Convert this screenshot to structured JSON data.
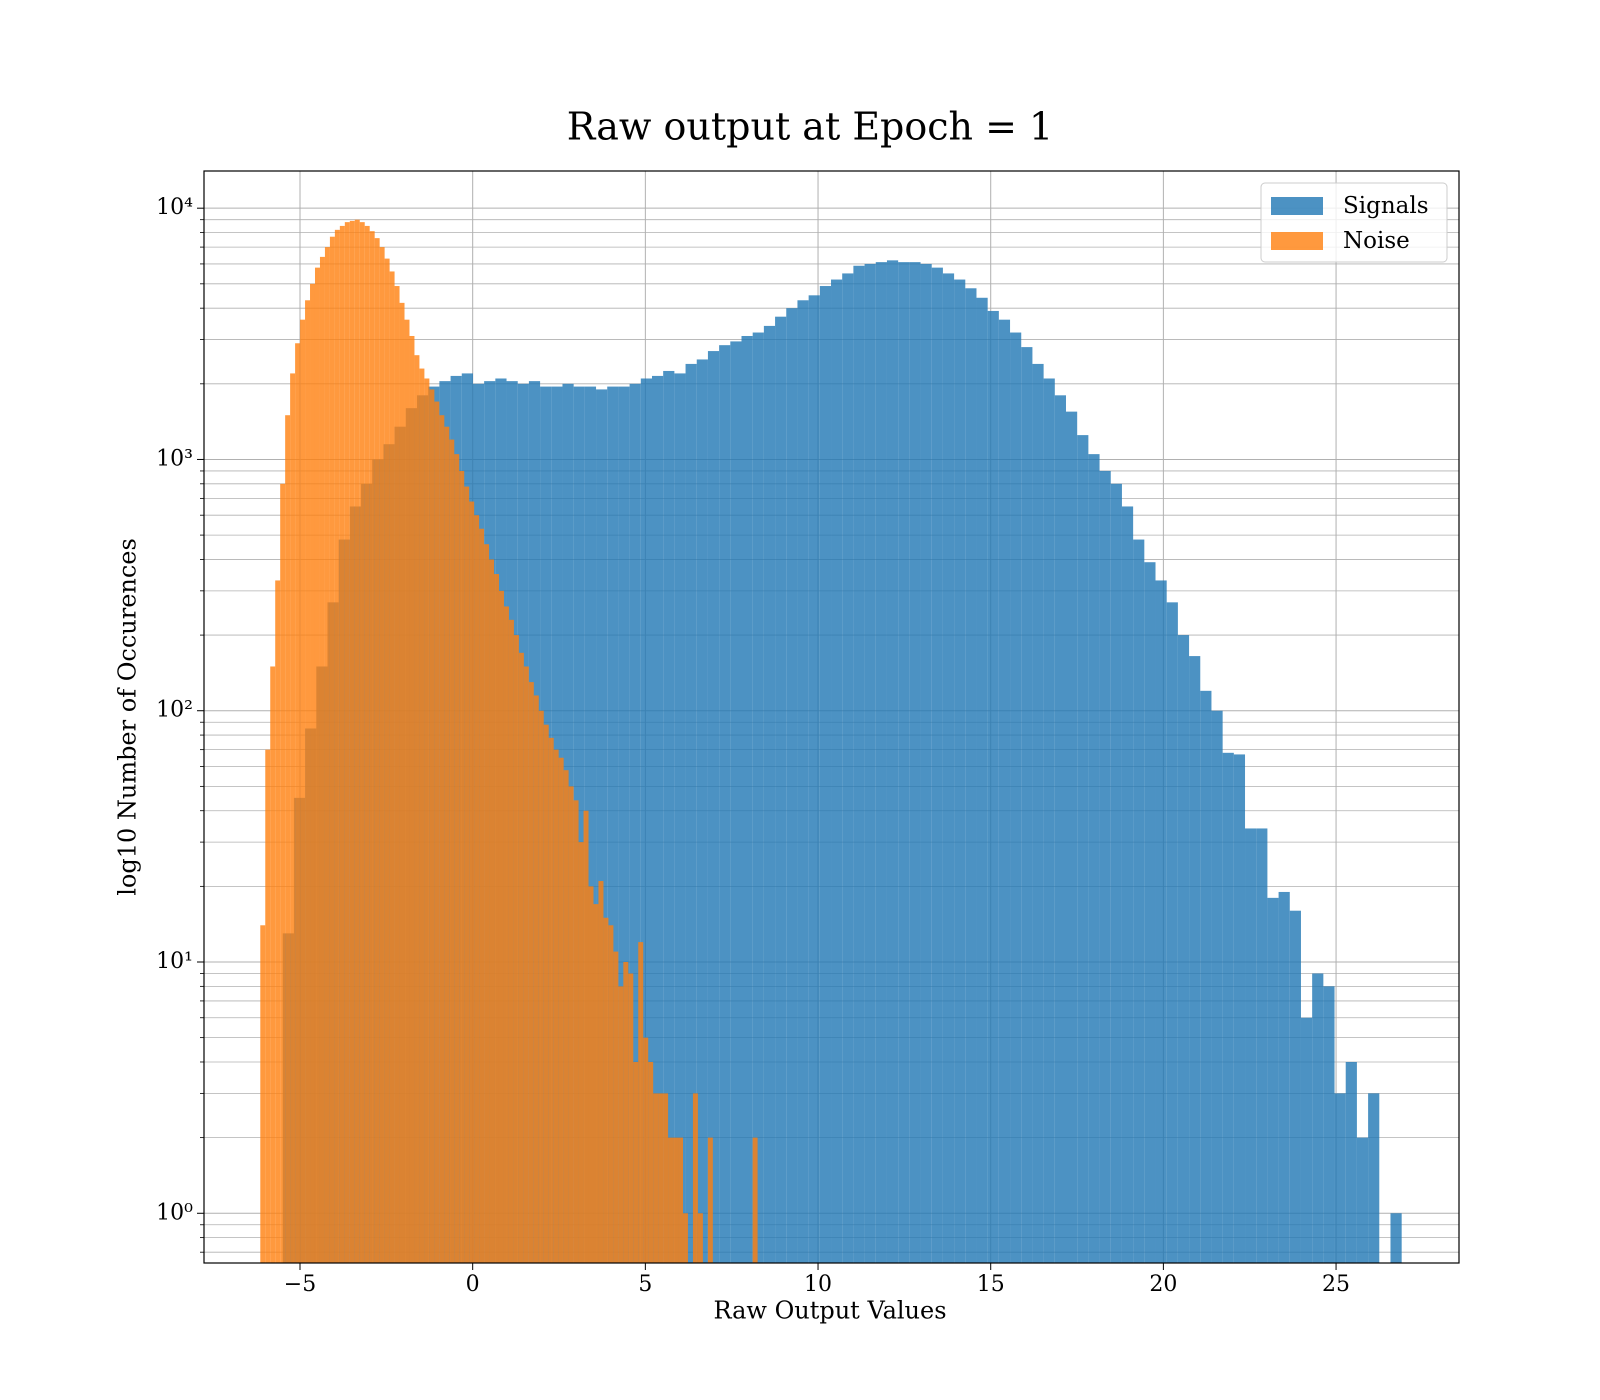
{
  "chart_data": {
    "type": "histogram",
    "title": "Raw output at Epoch = 1",
    "x_label": "Raw Output Values",
    "y_label": "log10 Number of Occurences",
    "log_y": true,
    "grid": true,
    "legend_corner": "upper right",
    "alpha": 0.8,
    "xlim": [
      -7.78,
      28.56
    ],
    "ylim": [
      0.634,
      14060
    ],
    "xticks": [
      {
        "value": -5,
        "label": "−5"
      },
      0,
      5,
      10,
      15,
      20,
      25
    ],
    "yticks": [
      {
        "value": 1,
        "label": "10⁰"
      },
      {
        "value": 10,
        "label": "10¹"
      },
      {
        "value": 100,
        "label": "10²"
      },
      {
        "value": 1000,
        "label": "10³"
      },
      {
        "value": 10000,
        "label": "10⁴"
      }
    ],
    "y_minor_ticks": [
      0.7,
      0.8,
      0.9,
      2,
      3,
      4,
      5,
      6,
      7,
      8,
      9,
      20,
      30,
      40,
      50,
      60,
      70,
      80,
      90,
      200,
      300,
      400,
      500,
      600,
      700,
      800,
      900,
      2000,
      3000,
      4000,
      5000,
      6000,
      7000,
      8000,
      9000
    ],
    "series": [
      {
        "name": "Signals",
        "color": "#1f77b4",
        "bins": [
          -5.5,
          -5.176,
          -4.852,
          -4.528,
          -4.204,
          -3.88,
          -3.556,
          -3.232,
          -2.908,
          -2.584,
          -2.26,
          -1.936,
          -1.612,
          -1.288,
          -0.964,
          -0.64,
          -0.316,
          0.008,
          0.332,
          0.656,
          0.98,
          1.304,
          1.628,
          1.952,
          2.276,
          2.6,
          2.924,
          3.248,
          3.572,
          3.896,
          4.22,
          4.544,
          4.868,
          5.192,
          5.516,
          5.84,
          6.164,
          6.488,
          6.812,
          7.136,
          7.46,
          7.784,
          8.108,
          8.432,
          8.756,
          9.08,
          9.404,
          9.728,
          10.052,
          10.376,
          10.7,
          11.024,
          11.348,
          11.672,
          11.996,
          12.32,
          12.644,
          12.968,
          13.292,
          13.616,
          13.94,
          14.264,
          14.588,
          14.912,
          15.236,
          15.56,
          15.884,
          16.208,
          16.532,
          16.856,
          17.18,
          17.504,
          17.828,
          18.152,
          18.476,
          18.8,
          19.124,
          19.448,
          19.772,
          20.096,
          20.42,
          20.744,
          21.068,
          21.392,
          21.716,
          22.04,
          22.364,
          22.688,
          23.012,
          23.336,
          23.66,
          23.984,
          24.308,
          24.632,
          24.956,
          25.28,
          25.604,
          25.928,
          26.252,
          26.576,
          26.9
        ],
        "values": [
          13,
          45,
          85,
          150,
          270,
          480,
          650,
          800,
          1000,
          1150,
          1350,
          1600,
          1800,
          1950,
          2050,
          2150,
          2200,
          2000,
          2050,
          2100,
          2050,
          2000,
          2050,
          1950,
          1950,
          2000,
          1950,
          1950,
          1900,
          1950,
          1950,
          2000,
          2100,
          2150,
          2250,
          2200,
          2400,
          2500,
          2700,
          2850,
          2950,
          3100,
          3200,
          3400,
          3700,
          4000,
          4300,
          4500,
          4900,
          5200,
          5500,
          5900,
          6000,
          6100,
          6200,
          6100,
          6100,
          6000,
          5800,
          5500,
          5200,
          4800,
          4400,
          3900,
          3600,
          3200,
          2800,
          2400,
          2100,
          1800,
          1550,
          1250,
          1050,
          900,
          800,
          650,
          480,
          390,
          330,
          270,
          200,
          165,
          120,
          100,
          68,
          67,
          34,
          34,
          18,
          19,
          16,
          6,
          9,
          8,
          3,
          4,
          2,
          3,
          0,
          1
        ]
      },
      {
        "name": "Noise",
        "color": "#ff7f0e",
        "bins": [
          -6.15,
          -6.006,
          -5.862,
          -5.718,
          -5.574,
          -5.43,
          -5.286,
          -5.142,
          -4.998,
          -4.854,
          -4.71,
          -4.566,
          -4.422,
          -4.278,
          -4.134,
          -3.99,
          -3.846,
          -3.702,
          -3.558,
          -3.414,
          -3.27,
          -3.126,
          -2.982,
          -2.838,
          -2.694,
          -2.55,
          -2.406,
          -2.262,
          -2.118,
          -1.974,
          -1.83,
          -1.686,
          -1.542,
          -1.398,
          -1.254,
          -1.11,
          -0.966,
          -0.822,
          -0.678,
          -0.534,
          -0.39,
          -0.246,
          -0.102,
          0.042,
          0.186,
          0.33,
          0.474,
          0.618,
          0.762,
          0.906,
          1.05,
          1.194,
          1.338,
          1.482,
          1.626,
          1.77,
          1.914,
          2.058,
          2.202,
          2.346,
          2.49,
          2.634,
          2.778,
          2.922,
          3.066,
          3.21,
          3.354,
          3.498,
          3.642,
          3.786,
          3.93,
          4.074,
          4.218,
          4.362,
          4.506,
          4.65,
          4.794,
          4.938,
          5.082,
          5.226,
          5.37,
          5.514,
          5.658,
          5.802,
          5.946,
          6.09,
          6.234,
          6.378,
          6.522,
          6.666,
          6.81,
          6.954,
          7.098,
          7.242,
          7.386,
          7.53,
          7.674,
          7.818,
          7.962,
          8.106,
          8.25
        ],
        "values": [
          14,
          70,
          150,
          330,
          800,
          1500,
          2200,
          2900,
          3600,
          4300,
          5000,
          5800,
          6400,
          7000,
          7700,
          8200,
          8500,
          8800,
          8900,
          9000,
          8800,
          8500,
          8100,
          7600,
          7000,
          6300,
          5600,
          4900,
          4200,
          3600,
          3100,
          2600,
          2300,
          2100,
          1900,
          1700,
          1500,
          1350,
          1200,
          1050,
          900,
          780,
          680,
          600,
          530,
          460,
          400,
          350,
          300,
          260,
          230,
          200,
          170,
          150,
          130,
          115,
          100,
          88,
          78,
          70,
          65,
          58,
          50,
          44,
          30,
          40,
          20,
          17,
          21,
          15,
          14,
          11,
          8,
          10,
          9,
          4,
          12,
          5,
          4,
          3,
          3,
          3,
          2,
          2,
          2,
          1,
          0,
          3,
          1,
          0,
          2,
          0,
          0,
          0,
          0,
          0,
          0,
          0,
          0,
          2
        ]
      }
    ]
  }
}
